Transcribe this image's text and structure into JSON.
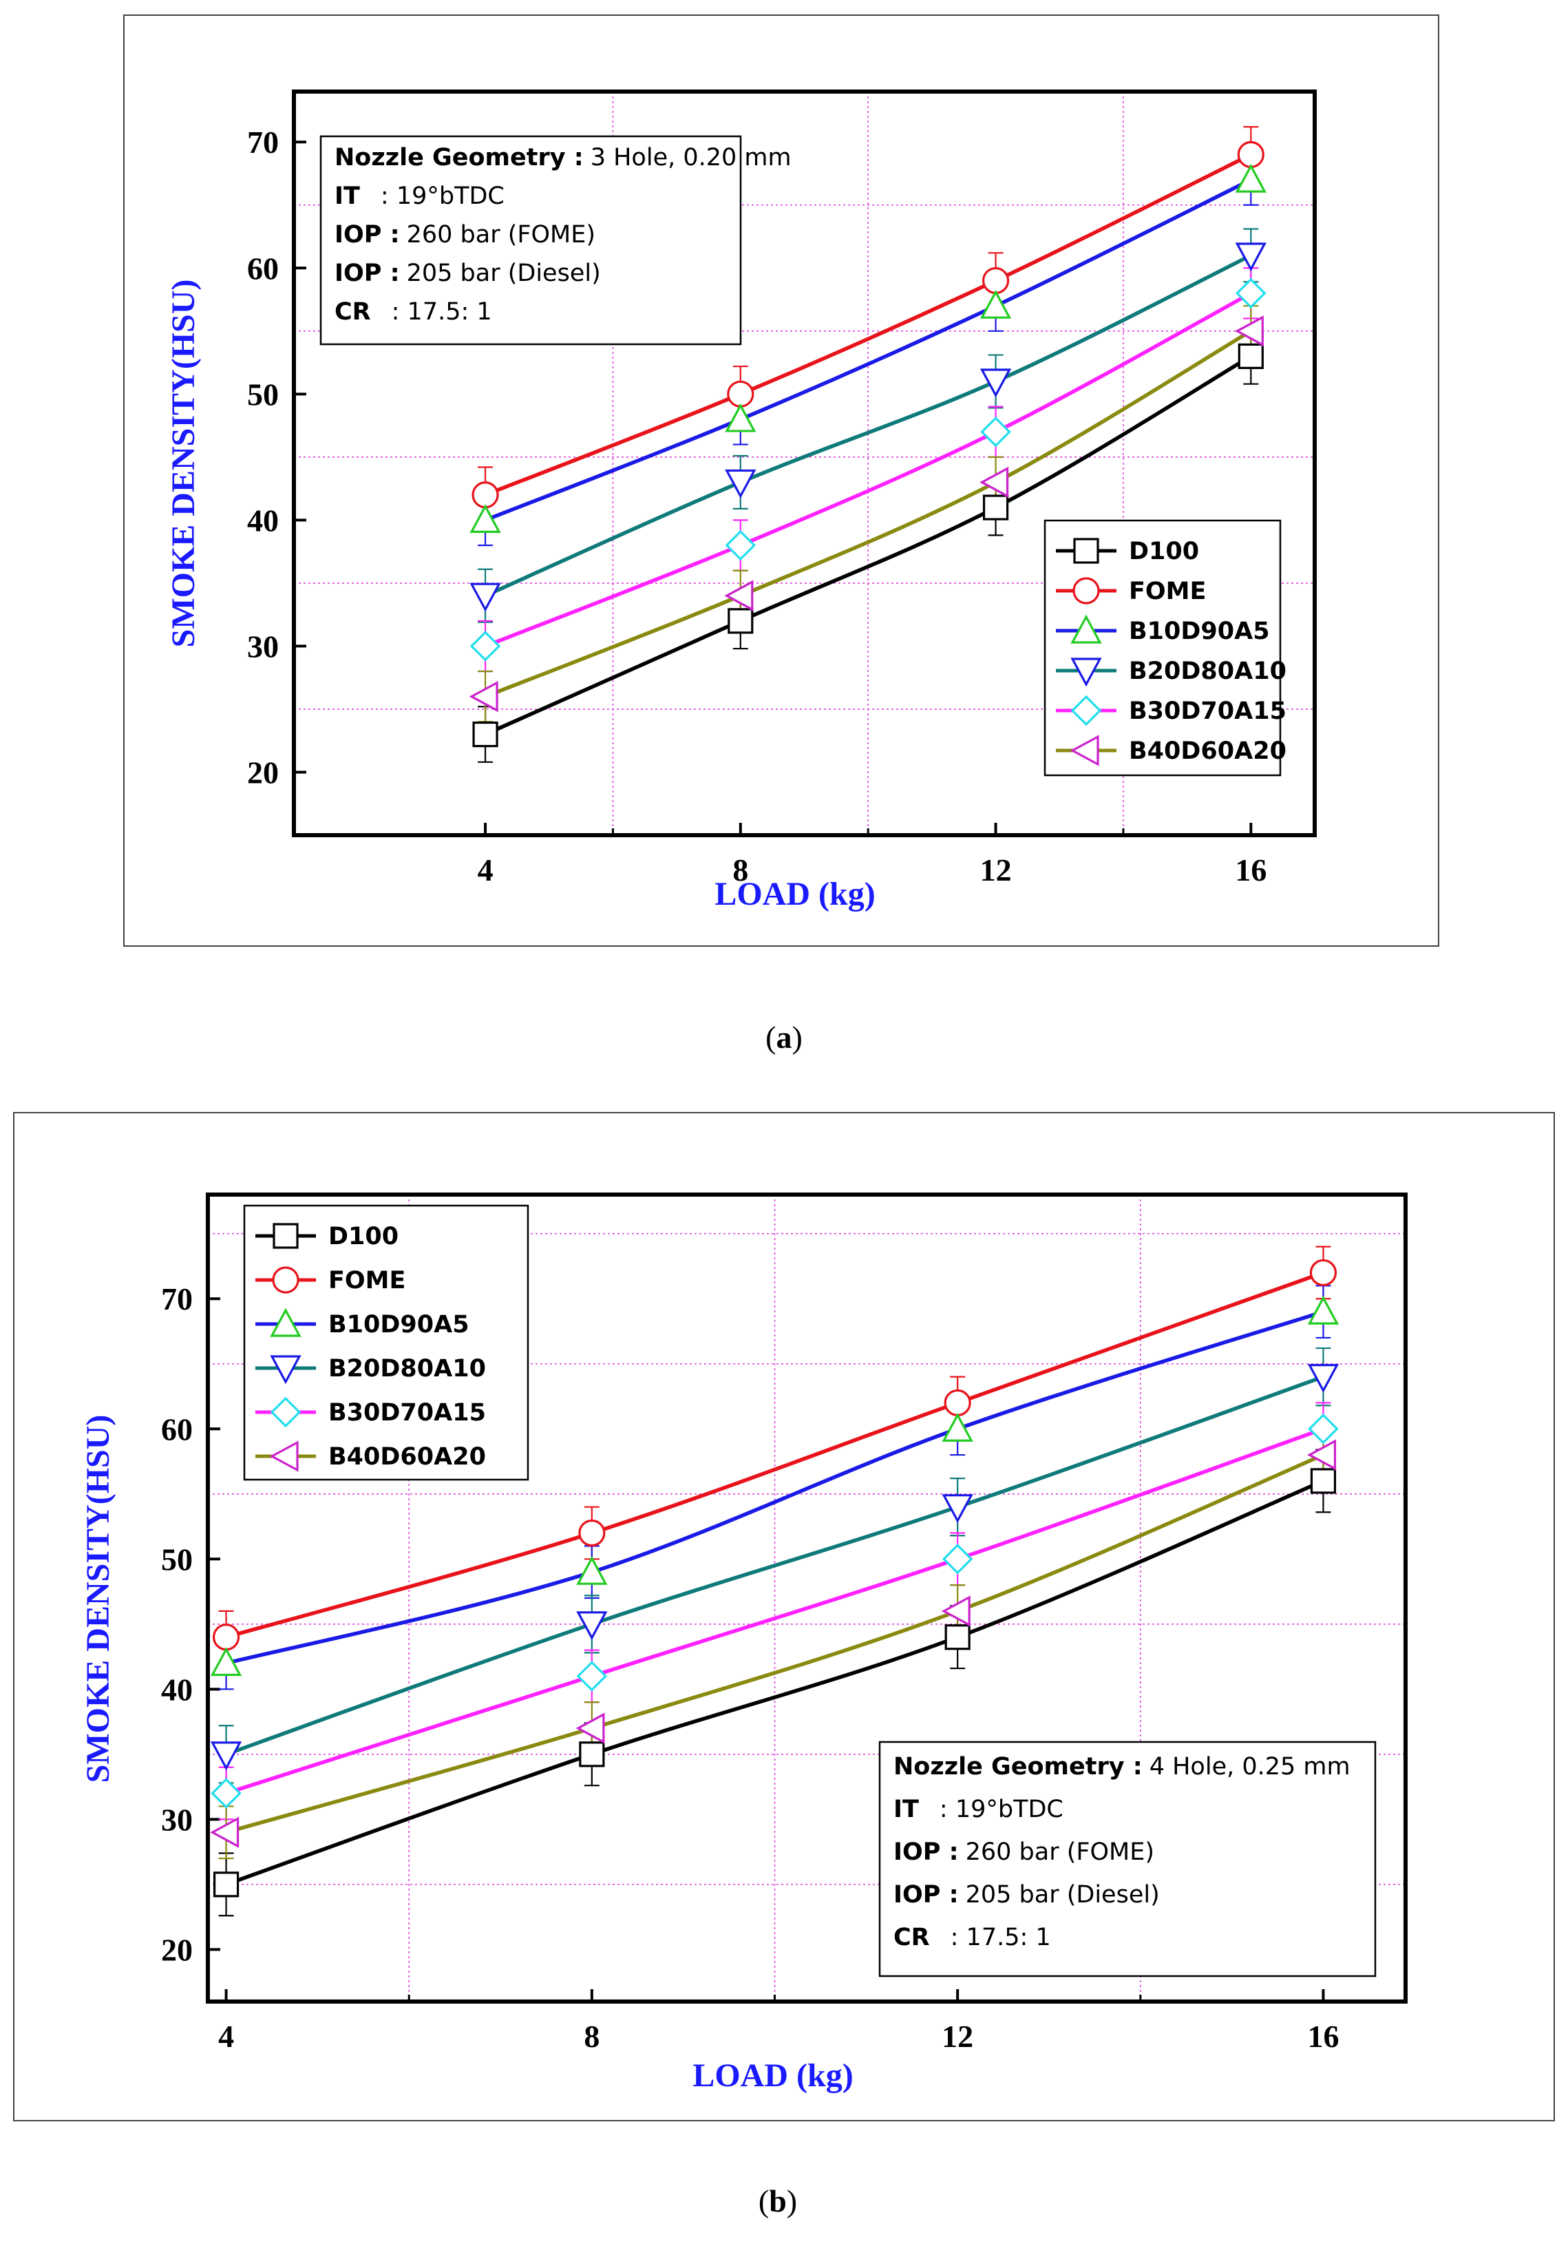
{
  "chart_data": [
    {
      "id": "a",
      "type": "line",
      "caption_letter": "a",
      "xlabel": "LOAD (kg)",
      "ylabel": "SMOKE DENSITY(HSU)",
      "x": [
        4,
        8,
        12,
        16
      ],
      "xlim": [
        1.0,
        17.0
      ],
      "ylim": [
        15.0,
        74.0
      ],
      "xticks": [
        4,
        8,
        12,
        16
      ],
      "yticks": [
        20,
        30,
        40,
        50,
        60,
        70
      ],
      "grid_x": [
        6,
        10,
        14
      ],
      "grid_y": [
        25,
        35,
        45,
        55,
        65
      ],
      "legend_position": "bottom-right",
      "info_position": "top-left",
      "info_lines": [
        {
          "label": "Nozzle Geometry :",
          "value": "3 Hole, 0.20 mm"
        },
        {
          "label": "IT",
          "value": ": 19°bTDC"
        },
        {
          "label": "IOP :",
          "value": "260 bar (FOME)"
        },
        {
          "label": "IOP :",
          "value": "205 bar (Diesel)"
        },
        {
          "label": "CR",
          "value": ": 17.5: 1"
        }
      ],
      "series": [
        {
          "name": "D100",
          "line_color": "#000000",
          "marker": "square",
          "marker_color": "#000000",
          "values": [
            23,
            32,
            41,
            53
          ],
          "error": 2.2
        },
        {
          "name": "FOME",
          "line_color": "#e8131a",
          "marker": "circle",
          "marker_color": "#e8131a",
          "values": [
            42,
            50,
            59,
            69
          ],
          "error": 2.2
        },
        {
          "name": "B10D90A5",
          "line_color": "#1a1ae6",
          "marker": "triangle-up",
          "marker_color": "#22cc22",
          "values": [
            40,
            48,
            57,
            67
          ],
          "error": 2.0
        },
        {
          "name": "B20D80A10",
          "line_color": "#0f7a7a",
          "marker": "triangle-down",
          "marker_color": "#1a1ae6",
          "values": [
            34,
            43,
            51,
            61
          ],
          "error": 2.1
        },
        {
          "name": "B30D70A15",
          "line_color": "#ff22ff",
          "marker": "diamond",
          "marker_color": "#22ddee",
          "values": [
            30,
            38,
            47,
            58
          ],
          "error": 2.0
        },
        {
          "name": "B40D60A20",
          "line_color": "#8a8a10",
          "marker": "triangle-left",
          "marker_color": "#cc22cc",
          "values": [
            26,
            34,
            43,
            55
          ],
          "error": 2.0
        }
      ]
    },
    {
      "id": "b",
      "type": "line",
      "caption_letter": "b",
      "xlabel": "LOAD (kg)",
      "ylabel": "SMOKE DENSITY(HSU)",
      "x": [
        4,
        8,
        12,
        16
      ],
      "xlim": [
        3.8,
        16.9
      ],
      "ylim": [
        16.0,
        78.0
      ],
      "xticks": [
        4,
        8,
        12,
        16
      ],
      "yticks": [
        20,
        30,
        40,
        50,
        60,
        70
      ],
      "grid_x": [
        6,
        10,
        14
      ],
      "grid_y": [
        25,
        35,
        45,
        55,
        65,
        75
      ],
      "legend_position": "top-left",
      "info_position": "bottom-right",
      "info_lines": [
        {
          "label": "Nozzle Geometry :",
          "value": "4 Hole, 0.25 mm"
        },
        {
          "label": "IT",
          "value": ": 19°bTDC"
        },
        {
          "label": "IOP :",
          "value": "260 bar (FOME)"
        },
        {
          "label": "IOP :",
          "value": "205 bar (Diesel)"
        },
        {
          "label": "CR",
          "value": ": 17.5: 1"
        }
      ],
      "series": [
        {
          "name": "D100",
          "line_color": "#000000",
          "marker": "square",
          "marker_color": "#000000",
          "values": [
            25,
            35,
            44,
            56
          ],
          "error": 2.4
        },
        {
          "name": "FOME",
          "line_color": "#e8131a",
          "marker": "circle",
          "marker_color": "#e8131a",
          "values": [
            44,
            52,
            62,
            72
          ],
          "error": 2.0
        },
        {
          "name": "B10D90A5",
          "line_color": "#1a1ae6",
          "marker": "triangle-up",
          "marker_color": "#22cc22",
          "values": [
            42,
            49,
            60,
            69
          ],
          "error": 2.0
        },
        {
          "name": "B20D80A10",
          "line_color": "#0f7a7a",
          "marker": "triangle-down",
          "marker_color": "#1a1ae6",
          "values": [
            35,
            45,
            54,
            64
          ],
          "error": 2.2
        },
        {
          "name": "B30D70A15",
          "line_color": "#ff22ff",
          "marker": "diamond",
          "marker_color": "#22ddee",
          "values": [
            32,
            41,
            50,
            60
          ],
          "error": 2.0
        },
        {
          "name": "B40D60A20",
          "line_color": "#8a8a10",
          "marker": "triangle-left",
          "marker_color": "#cc22cc",
          "values": [
            29,
            37,
            46,
            58
          ],
          "error": 2.0
        }
      ]
    }
  ]
}
